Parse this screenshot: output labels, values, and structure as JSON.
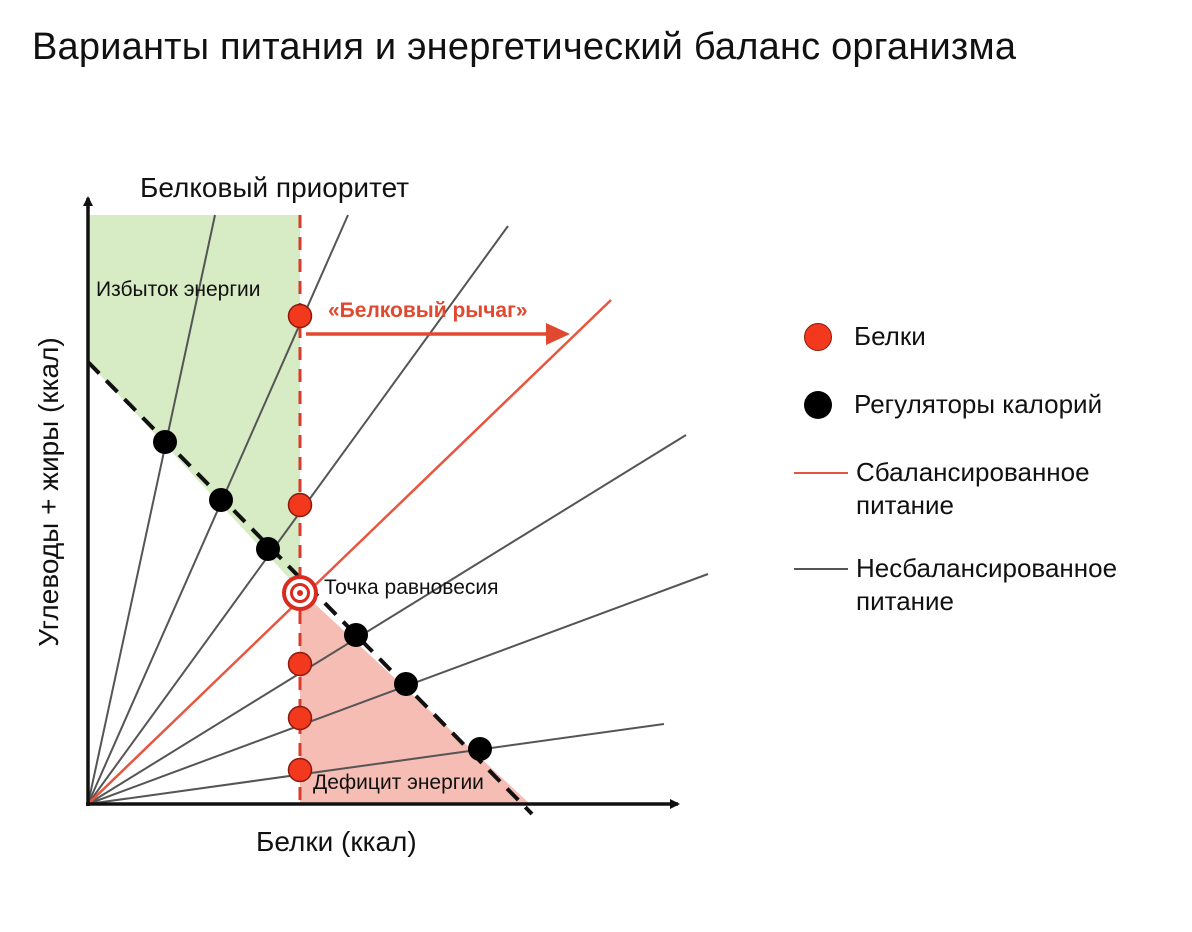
{
  "title": "Варианты питания и энергетический баланс организма",
  "diagram": {
    "top_label": "Белковый приоритет",
    "x_axis_label": "Белки (ккал)",
    "y_axis_label": "Углеводы + жиры (ккал)",
    "surplus_label": "Избыток энергии",
    "deficit_label": "Дефицит энергии",
    "equilibrium_label": "Точка равновесия",
    "lever_label": "«Белковый рычаг»"
  },
  "legend": {
    "protein": "Белки",
    "regulators": "Регуляторы калорий",
    "balanced_line1": "Сбалансированное",
    "balanced_line2": "питание",
    "unbalanced_line1": "Несбалансированное",
    "unbalanced_line2": "питание"
  },
  "colors": {
    "protein_red": "#f2391d",
    "balanced_line": "#e8553f",
    "unbalanced_line": "#555555",
    "surplus_fill": "#d7ebc4",
    "deficit_fill": "#f5bdb4",
    "lever_text": "#e0482f",
    "dashed_red": "#d93a2b"
  }
}
